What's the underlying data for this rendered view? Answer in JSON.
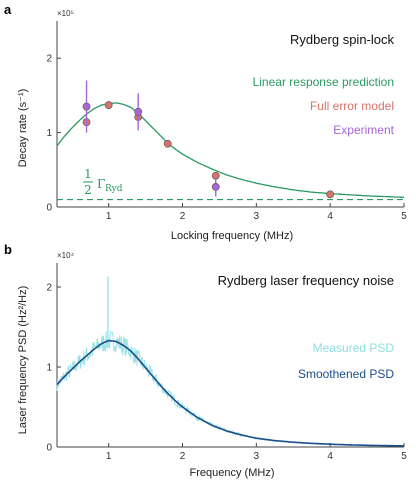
{
  "chart_data": [
    {
      "panel": "a",
      "type": "line",
      "title": "Rydberg spin-lock",
      "xlabel": "Locking frequency (MHz)",
      "ylabel": "Decay rate (s⁻¹)",
      "y_multiplier": "×10⁵",
      "xlim": [
        0.3,
        5
      ],
      "ylim": [
        0,
        2.5
      ],
      "xticks": [
        1,
        2,
        3,
        4,
        5
      ],
      "yticks": [
        0,
        1,
        2
      ],
      "grid": false,
      "legend_position": "right",
      "reference_line": {
        "label_numerator": "1",
        "label_denominator": "2",
        "label_symbol": "Γ",
        "label_subscript": "Ryd",
        "y": 0.1,
        "color": "#2a9a62",
        "style": "dashed"
      },
      "series": [
        {
          "name": "Linear response prediction",
          "kind": "line",
          "color": "#2a9a62",
          "x": [
            0.3,
            0.4,
            0.5,
            0.6,
            0.7,
            0.8,
            0.9,
            1.0,
            1.1,
            1.2,
            1.3,
            1.4,
            1.5,
            1.6,
            1.7,
            1.8,
            1.9,
            2.0,
            2.2,
            2.4,
            2.6,
            2.8,
            3.0,
            3.25,
            3.5,
            3.75,
            4.0,
            4.25,
            4.5,
            4.75,
            5.0
          ],
          "y": [
            0.82,
            0.95,
            1.06,
            1.16,
            1.25,
            1.32,
            1.37,
            1.39,
            1.4,
            1.38,
            1.34,
            1.26,
            1.16,
            1.06,
            0.96,
            0.86,
            0.78,
            0.71,
            0.6,
            0.51,
            0.43,
            0.37,
            0.32,
            0.27,
            0.23,
            0.2,
            0.18,
            0.165,
            0.15,
            0.14,
            0.13
          ]
        },
        {
          "name": "Full error model",
          "kind": "scatter",
          "color": "#d4736b",
          "x": [
            0.7,
            1.0,
            1.4,
            1.8,
            2.45,
            4.0
          ],
          "y": [
            1.14,
            1.37,
            1.21,
            0.85,
            0.42,
            0.17
          ]
        },
        {
          "name": "Experiment",
          "kind": "scatter_errorbar",
          "color": "#a766d8",
          "x": [
            0.7,
            1.4,
            2.45
          ],
          "y": [
            1.35,
            1.28,
            0.27
          ],
          "yerr": [
            0.35,
            0.25,
            0.13
          ]
        }
      ]
    },
    {
      "panel": "b",
      "type": "line",
      "title": "Rydberg laser frequency noise",
      "xlabel": "Frequency (MHz)",
      "ylabel": "Laser frequency PSD (Hz²/Hz)",
      "y_multiplier": "×10⁴",
      "xlim": [
        0.3,
        5
      ],
      "ylim": [
        0,
        2.3
      ],
      "xticks": [
        1,
        2,
        3,
        4,
        5
      ],
      "yticks": [
        0,
        1,
        2
      ],
      "grid": false,
      "legend_position": "right",
      "series": [
        {
          "name": "Measured PSD",
          "kind": "noisy_line",
          "color": "#8fe0e3",
          "x": [
            0.3,
            0.4,
            0.5,
            0.6,
            0.7,
            0.8,
            0.9,
            1.0,
            1.1,
            1.2,
            1.3,
            1.4,
            1.5,
            1.6,
            1.7,
            1.8,
            1.9,
            2.0,
            2.2,
            2.4,
            2.6,
            2.8,
            3.0,
            3.25,
            3.5,
            3.75,
            4.0,
            4.25,
            4.5,
            4.75,
            5.0
          ],
          "y": [
            0.78,
            0.88,
            0.97,
            1.06,
            1.14,
            1.22,
            1.29,
            1.33,
            1.32,
            1.27,
            1.2,
            1.1,
            0.99,
            0.88,
            0.77,
            0.67,
            0.58,
            0.5,
            0.37,
            0.27,
            0.2,
            0.15,
            0.11,
            0.08,
            0.06,
            0.045,
            0.035,
            0.027,
            0.021,
            0.017,
            0.014
          ],
          "noise_amplitude": 0.12,
          "peak_spike": {
            "x": 0.99,
            "y": 2.13
          }
        },
        {
          "name": "Smoothened PSD",
          "kind": "line",
          "color": "#1c4e8a",
          "x": [
            0.3,
            0.4,
            0.5,
            0.6,
            0.7,
            0.8,
            0.9,
            1.0,
            1.1,
            1.2,
            1.3,
            1.4,
            1.5,
            1.6,
            1.7,
            1.8,
            1.9,
            2.0,
            2.2,
            2.4,
            2.6,
            2.8,
            3.0,
            3.25,
            3.5,
            3.75,
            4.0,
            4.25,
            4.5,
            4.75,
            5.0
          ],
          "y": [
            0.78,
            0.88,
            0.97,
            1.06,
            1.14,
            1.22,
            1.29,
            1.33,
            1.32,
            1.27,
            1.2,
            1.1,
            0.99,
            0.88,
            0.77,
            0.67,
            0.58,
            0.5,
            0.37,
            0.27,
            0.2,
            0.15,
            0.11,
            0.08,
            0.06,
            0.045,
            0.035,
            0.027,
            0.021,
            0.017,
            0.014
          ]
        }
      ]
    }
  ]
}
